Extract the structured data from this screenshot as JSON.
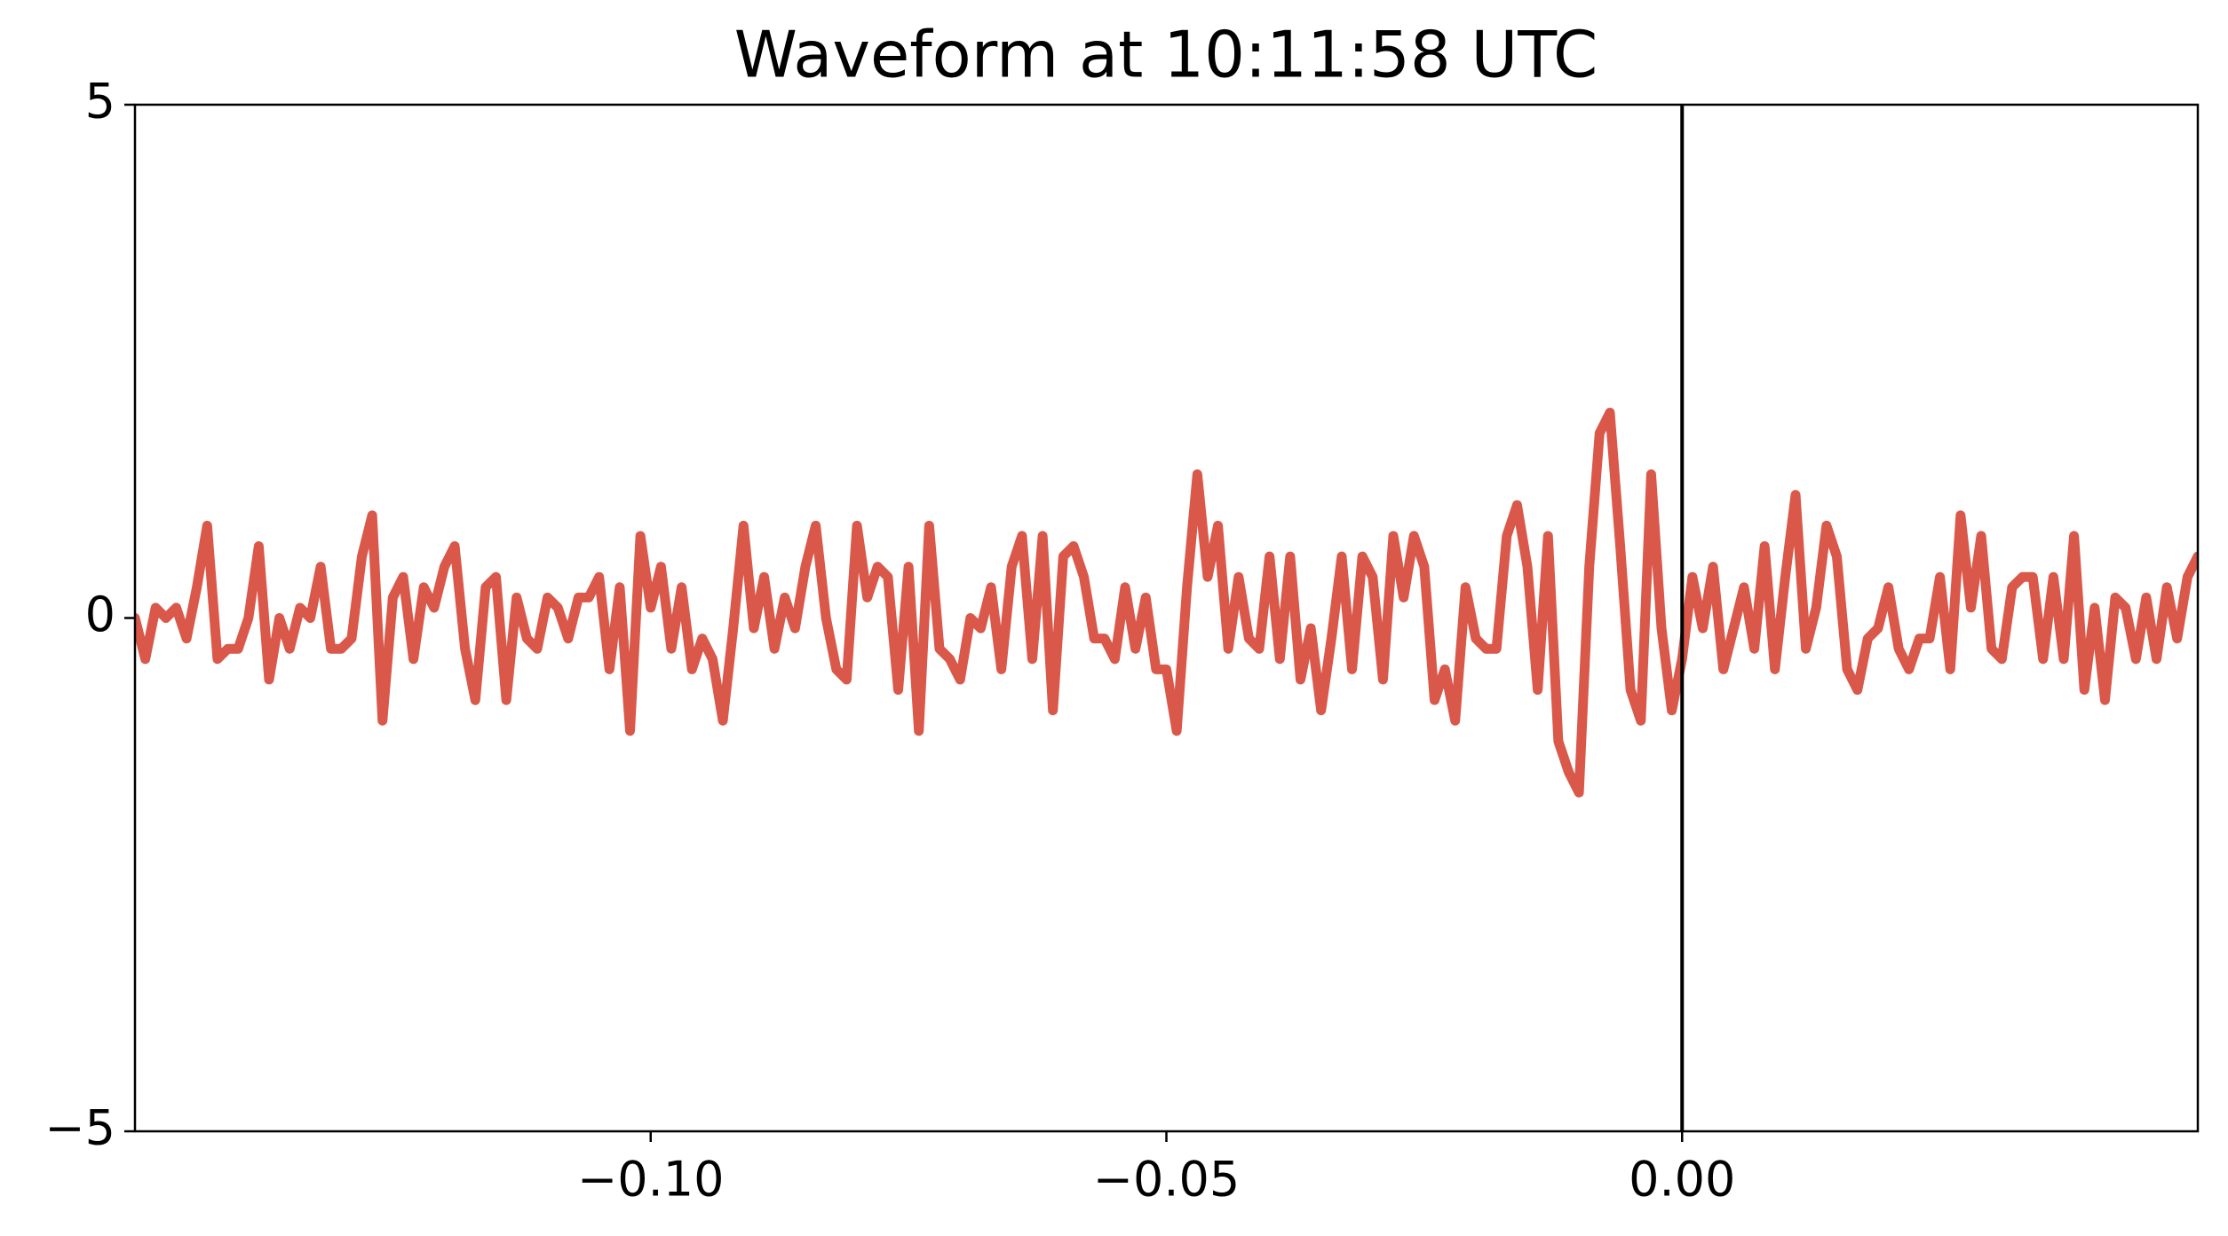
{
  "chart_data": {
    "type": "line",
    "title": "Waveform at 10:11:58 UTC",
    "x": [
      -0.15,
      -0.149,
      -0.148,
      -0.147,
      -0.146,
      -0.145,
      -0.144,
      -0.143,
      -0.142,
      -0.141,
      -0.14,
      -0.139,
      -0.138,
      -0.137,
      -0.136,
      -0.135,
      -0.134,
      -0.133,
      -0.132,
      -0.131,
      -0.13,
      -0.129,
      -0.128,
      -0.127,
      -0.126,
      -0.125,
      -0.124,
      -0.123,
      -0.122,
      -0.121,
      -0.12,
      -0.119,
      -0.118,
      -0.117,
      -0.116,
      -0.115,
      -0.114,
      -0.113,
      -0.112,
      -0.111,
      -0.11,
      -0.109,
      -0.108,
      -0.107,
      -0.106,
      -0.105,
      -0.104,
      -0.103,
      -0.102,
      -0.101,
      -0.1,
      -0.099,
      -0.098,
      -0.097,
      -0.096,
      -0.095,
      -0.094,
      -0.093,
      -0.092,
      -0.091,
      -0.09,
      -0.089,
      -0.088,
      -0.087,
      -0.086,
      -0.085,
      -0.084,
      -0.083,
      -0.082,
      -0.081,
      -0.08,
      -0.079,
      -0.078,
      -0.077,
      -0.076,
      -0.075,
      -0.074,
      -0.073,
      -0.072,
      -0.071,
      -0.07,
      -0.069,
      -0.068,
      -0.067,
      -0.066,
      -0.065,
      -0.064,
      -0.063,
      -0.062,
      -0.061,
      -0.06,
      -0.059,
      -0.058,
      -0.057,
      -0.056,
      -0.055,
      -0.054,
      -0.053,
      -0.052,
      -0.051,
      -0.05,
      -0.049,
      -0.048,
      -0.047,
      -0.046,
      -0.045,
      -0.044,
      -0.043,
      -0.042,
      -0.041,
      -0.04,
      -0.039,
      -0.038,
      -0.037,
      -0.036,
      -0.035,
      -0.034,
      -0.033,
      -0.032,
      -0.031,
      -0.03,
      -0.029,
      -0.028,
      -0.027,
      -0.026,
      -0.025,
      -0.024,
      -0.023,
      -0.022,
      -0.021,
      -0.02,
      -0.019,
      -0.018,
      -0.017,
      -0.016,
      -0.015,
      -0.014,
      -0.013,
      -0.012,
      -0.011,
      -0.01,
      -0.009,
      -0.008,
      -0.007,
      -0.006,
      -0.005,
      -0.004,
      -0.003,
      -0.002,
      -0.001,
      0,
      0.001,
      0.002,
      0.003,
      0.004,
      0.005,
      0.006,
      0.007,
      0.008,
      0.009,
      0.01,
      0.011,
      0.012,
      0.013,
      0.014,
      0.015,
      0.016,
      0.017,
      0.018,
      0.019,
      0.02,
      0.021,
      0.022,
      0.023,
      0.024,
      0.025,
      0.026,
      0.027,
      0.028,
      0.029,
      0.03,
      0.031,
      0.032,
      0.033,
      0.034,
      0.035,
      0.036,
      0.037,
      0.038,
      0.039,
      0.04,
      0.041,
      0.042,
      0.043,
      0.044,
      0.045,
      0.046,
      0.047,
      0.048,
      0.049,
      0.05
    ],
    "series": [
      {
        "color": "#d9584a",
        "values": [
          0,
          -0.4,
          0.1,
          0,
          0.1,
          -0.2,
          0.3,
          0.9,
          -0.4,
          -0.3,
          -0.3,
          0,
          0.7,
          -0.6,
          0,
          -0.3,
          0.1,
          0,
          0.5,
          -0.3,
          -0.3,
          -0.2,
          0.6,
          1.0,
          -1.0,
          0.2,
          0.4,
          -0.4,
          0.3,
          0.1,
          0.5,
          0.7,
          -0.3,
          -0.8,
          0.3,
          0.4,
          -0.8,
          0.2,
          -0.2,
          -0.3,
          0.2,
          0.1,
          -0.2,
          0.2,
          0.2,
          0.4,
          -0.5,
          0.3,
          -1.1,
          0.8,
          0.1,
          0.5,
          -0.3,
          0.3,
          -0.5,
          -0.2,
          -0.4,
          -1.0,
          -0.1,
          0.9,
          -0.1,
          0.4,
          -0.3,
          0.2,
          -0.1,
          0.5,
          0.9,
          0,
          -0.5,
          -0.6,
          0.9,
          0.2,
          0.5,
          0.4,
          -0.7,
          0.5,
          -1.1,
          0.9,
          -0.3,
          -0.4,
          -0.6,
          0,
          -0.1,
          0.3,
          -0.5,
          0.5,
          0.8,
          -0.4,
          0.8,
          -0.9,
          0.6,
          0.7,
          0.4,
          -0.2,
          -0.2,
          -0.4,
          0.3,
          -0.3,
          0.2,
          -0.5,
          -0.5,
          -1.1,
          0.3,
          1.4,
          0.4,
          0.9,
          -0.3,
          0.4,
          -0.2,
          -0.3,
          0.6,
          -0.4,
          0.6,
          -0.6,
          -0.1,
          -0.9,
          -0.2,
          0.6,
          -0.5,
          0.6,
          0.4,
          -0.6,
          0.8,
          0.2,
          0.8,
          0.5,
          -0.8,
          -0.5,
          -1.0,
          0.3,
          -0.2,
          -0.3,
          -0.3,
          0.8,
          1.1,
          0.5,
          -0.7,
          0.8,
          -1.2,
          -1.5,
          -1.7,
          0.5,
          1.8,
          2.0,
          0.7,
          -0.7,
          -1.0,
          1.4,
          -0.1,
          -0.9,
          -0.4,
          0.4,
          -0.1,
          0.5,
          -0.5,
          -0.1,
          0.3,
          -0.3,
          0.7,
          -0.5,
          0.4,
          1.2,
          -0.3,
          0.1,
          0.9,
          0.6,
          -0.5,
          -0.7,
          -0.2,
          -0.1,
          0.3,
          -0.3,
          -0.5,
          -0.2,
          -0.2,
          0.4,
          -0.5,
          1.0,
          0.1,
          0.8,
          -0.3,
          -0.4,
          0.3,
          0.4,
          0.4,
          -0.4,
          0.4,
          -0.4,
          0.8,
          -0.7,
          0.1,
          -0.8,
          0.2,
          0.1,
          -0.4,
          0.2,
          -0.4,
          0.3,
          -0.2,
          0.4,
          0.6
        ]
      }
    ],
    "xlim": [
      -0.15,
      0.05
    ],
    "xticks": [
      {
        "value": -0.1,
        "label": "−0.10"
      },
      {
        "value": -0.05,
        "label": "−0.05"
      },
      {
        "value": 0,
        "label": "0.00"
      }
    ],
    "ylim": [
      -5,
      5
    ],
    "yticks": [
      {
        "value": -5,
        "label": "−5"
      },
      0,
      5
    ],
    "vline_x": 0,
    "vline_color": "#000000"
  }
}
